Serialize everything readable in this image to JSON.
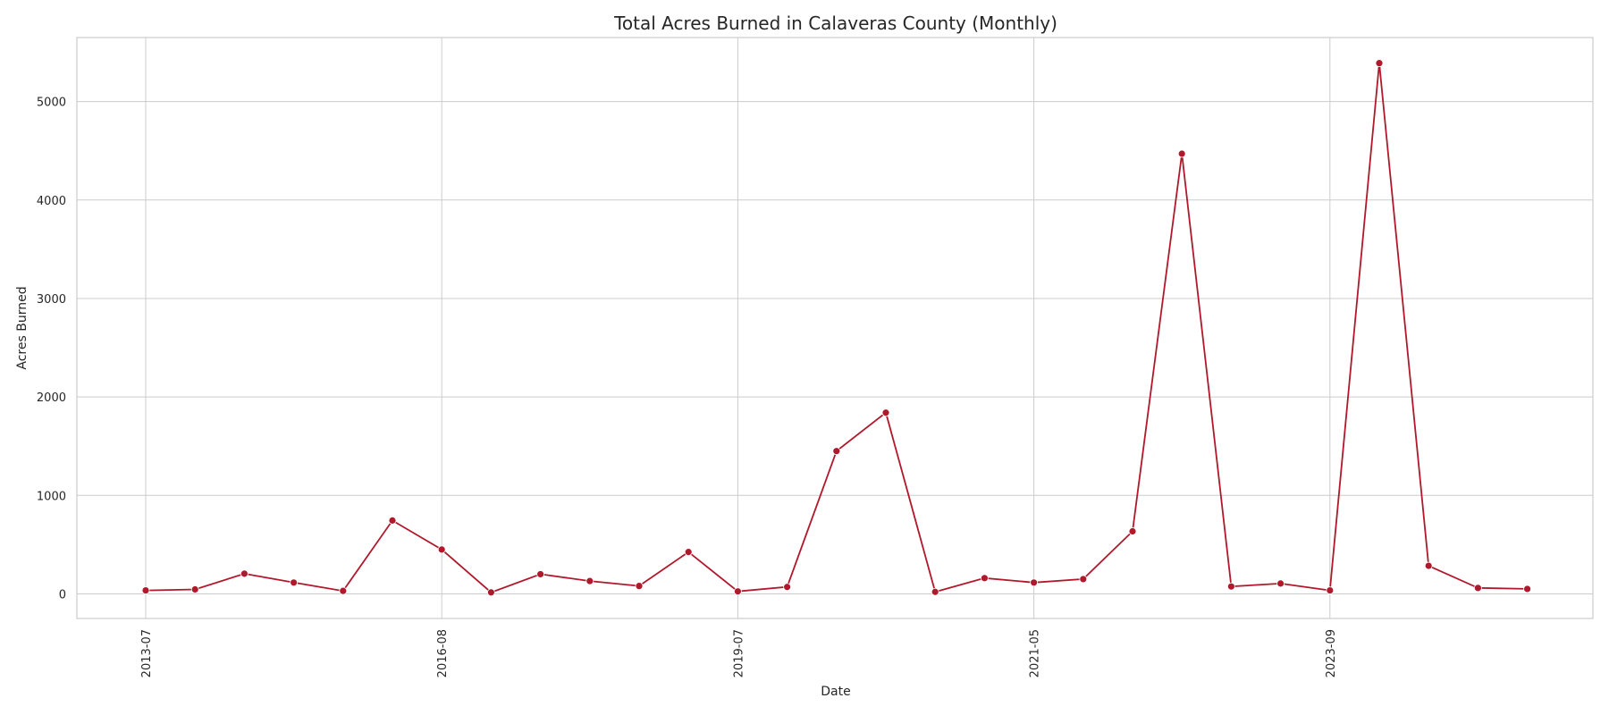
{
  "chart_data": {
    "type": "line",
    "title": "Total Acres Burned in Calaveras County (Monthly)",
    "xlabel": "Date",
    "ylabel": "Acres Burned",
    "x_ticks": [
      "2013-07",
      "2016-08",
      "2019-07",
      "2021-05",
      "2023-09"
    ],
    "y_ticks": [
      0,
      1000,
      2000,
      3000,
      4000,
      5000
    ],
    "ylim": [
      -250,
      5650
    ],
    "grid": true,
    "legend": "none",
    "marker": "circle",
    "color": "#b2182b",
    "values": [
      35,
      45,
      205,
      115,
      30,
      745,
      450,
      15,
      200,
      130,
      80,
      425,
      25,
      70,
      1450,
      1840,
      20,
      160,
      115,
      150,
      635,
      4470,
      75,
      105,
      35,
      5390,
      285,
      60,
      50
    ],
    "tick_positions": [
      0,
      6,
      12,
      18,
      24
    ]
  }
}
